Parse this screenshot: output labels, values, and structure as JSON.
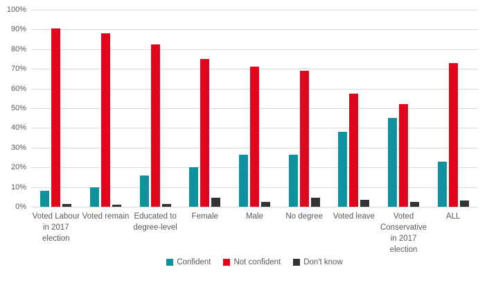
{
  "chart_data": {
    "type": "bar",
    "title": "",
    "xlabel": "",
    "ylabel": "",
    "categories": [
      "Voted Labour\nin 2017\nelection",
      "Voted remain",
      "Educated to\ndegree-level",
      "Female",
      "Male",
      "No degree",
      "Voted leave",
      "Voted\nConservative\nin 2017\nelection",
      "ALL"
    ],
    "series": [
      {
        "name": "Confident",
        "color": "#0e929e",
        "values": [
          8,
          10,
          16,
          20,
          26.5,
          26.5,
          38,
          45,
          23
        ]
      },
      {
        "name": "Not confident",
        "color": "#e0071c",
        "values": [
          90.5,
          88,
          82.5,
          75,
          71,
          69,
          57.5,
          52,
          73
        ]
      },
      {
        "name": "Don't know",
        "color": "#333333",
        "values": [
          1.5,
          1,
          1.5,
          4.5,
          2.5,
          4.5,
          3.5,
          2.5,
          3
        ]
      }
    ],
    "ylim": [
      0,
      100
    ],
    "ytick_labels": [
      "100%",
      "90%",
      "80%",
      "70%",
      "60%",
      "50%",
      "40%",
      "30%",
      "20%",
      "10%",
      "0%"
    ],
    "grid": true,
    "gridline_color": "#d9d9d9",
    "legend_position": "bottom",
    "legend": [
      "Confident",
      "Not confident",
      "Don't know"
    ]
  }
}
